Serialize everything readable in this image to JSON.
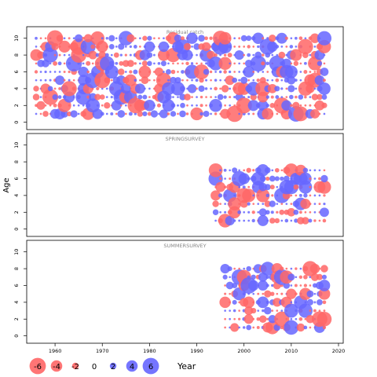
{
  "chart_data": {
    "type": "scatter",
    "subtype": "bubble",
    "xlabel": "Year",
    "ylabel": "Age",
    "x_ticks": [
      1960,
      1970,
      1980,
      1990,
      2000,
      2010,
      2020
    ],
    "y_ticks": [
      0,
      2,
      4,
      6,
      8,
      10
    ],
    "xlim": [
      1954,
      2021
    ],
    "ylim": [
      -0.5,
      11
    ],
    "sign_colors": {
      "negative": "#ff6666",
      "positive": "#6666ff"
    },
    "legend": {
      "values": [
        -6,
        -4,
        -2,
        0,
        2,
        4,
        6
      ]
    },
    "panels": [
      {
        "title": "Residual catch",
        "years": [
          1956,
          2017
        ],
        "ages": [
          1,
          10
        ],
        "seed": 17
      },
      {
        "title": "SPRINGSURVEY",
        "years": [
          1994,
          2017
        ],
        "ages": [
          1,
          7
        ],
        "seed": 29
      },
      {
        "title": "SUMMERSURVEY",
        "years": [
          1996,
          2017
        ],
        "ages": [
          1,
          8
        ],
        "seed": 43
      }
    ]
  }
}
